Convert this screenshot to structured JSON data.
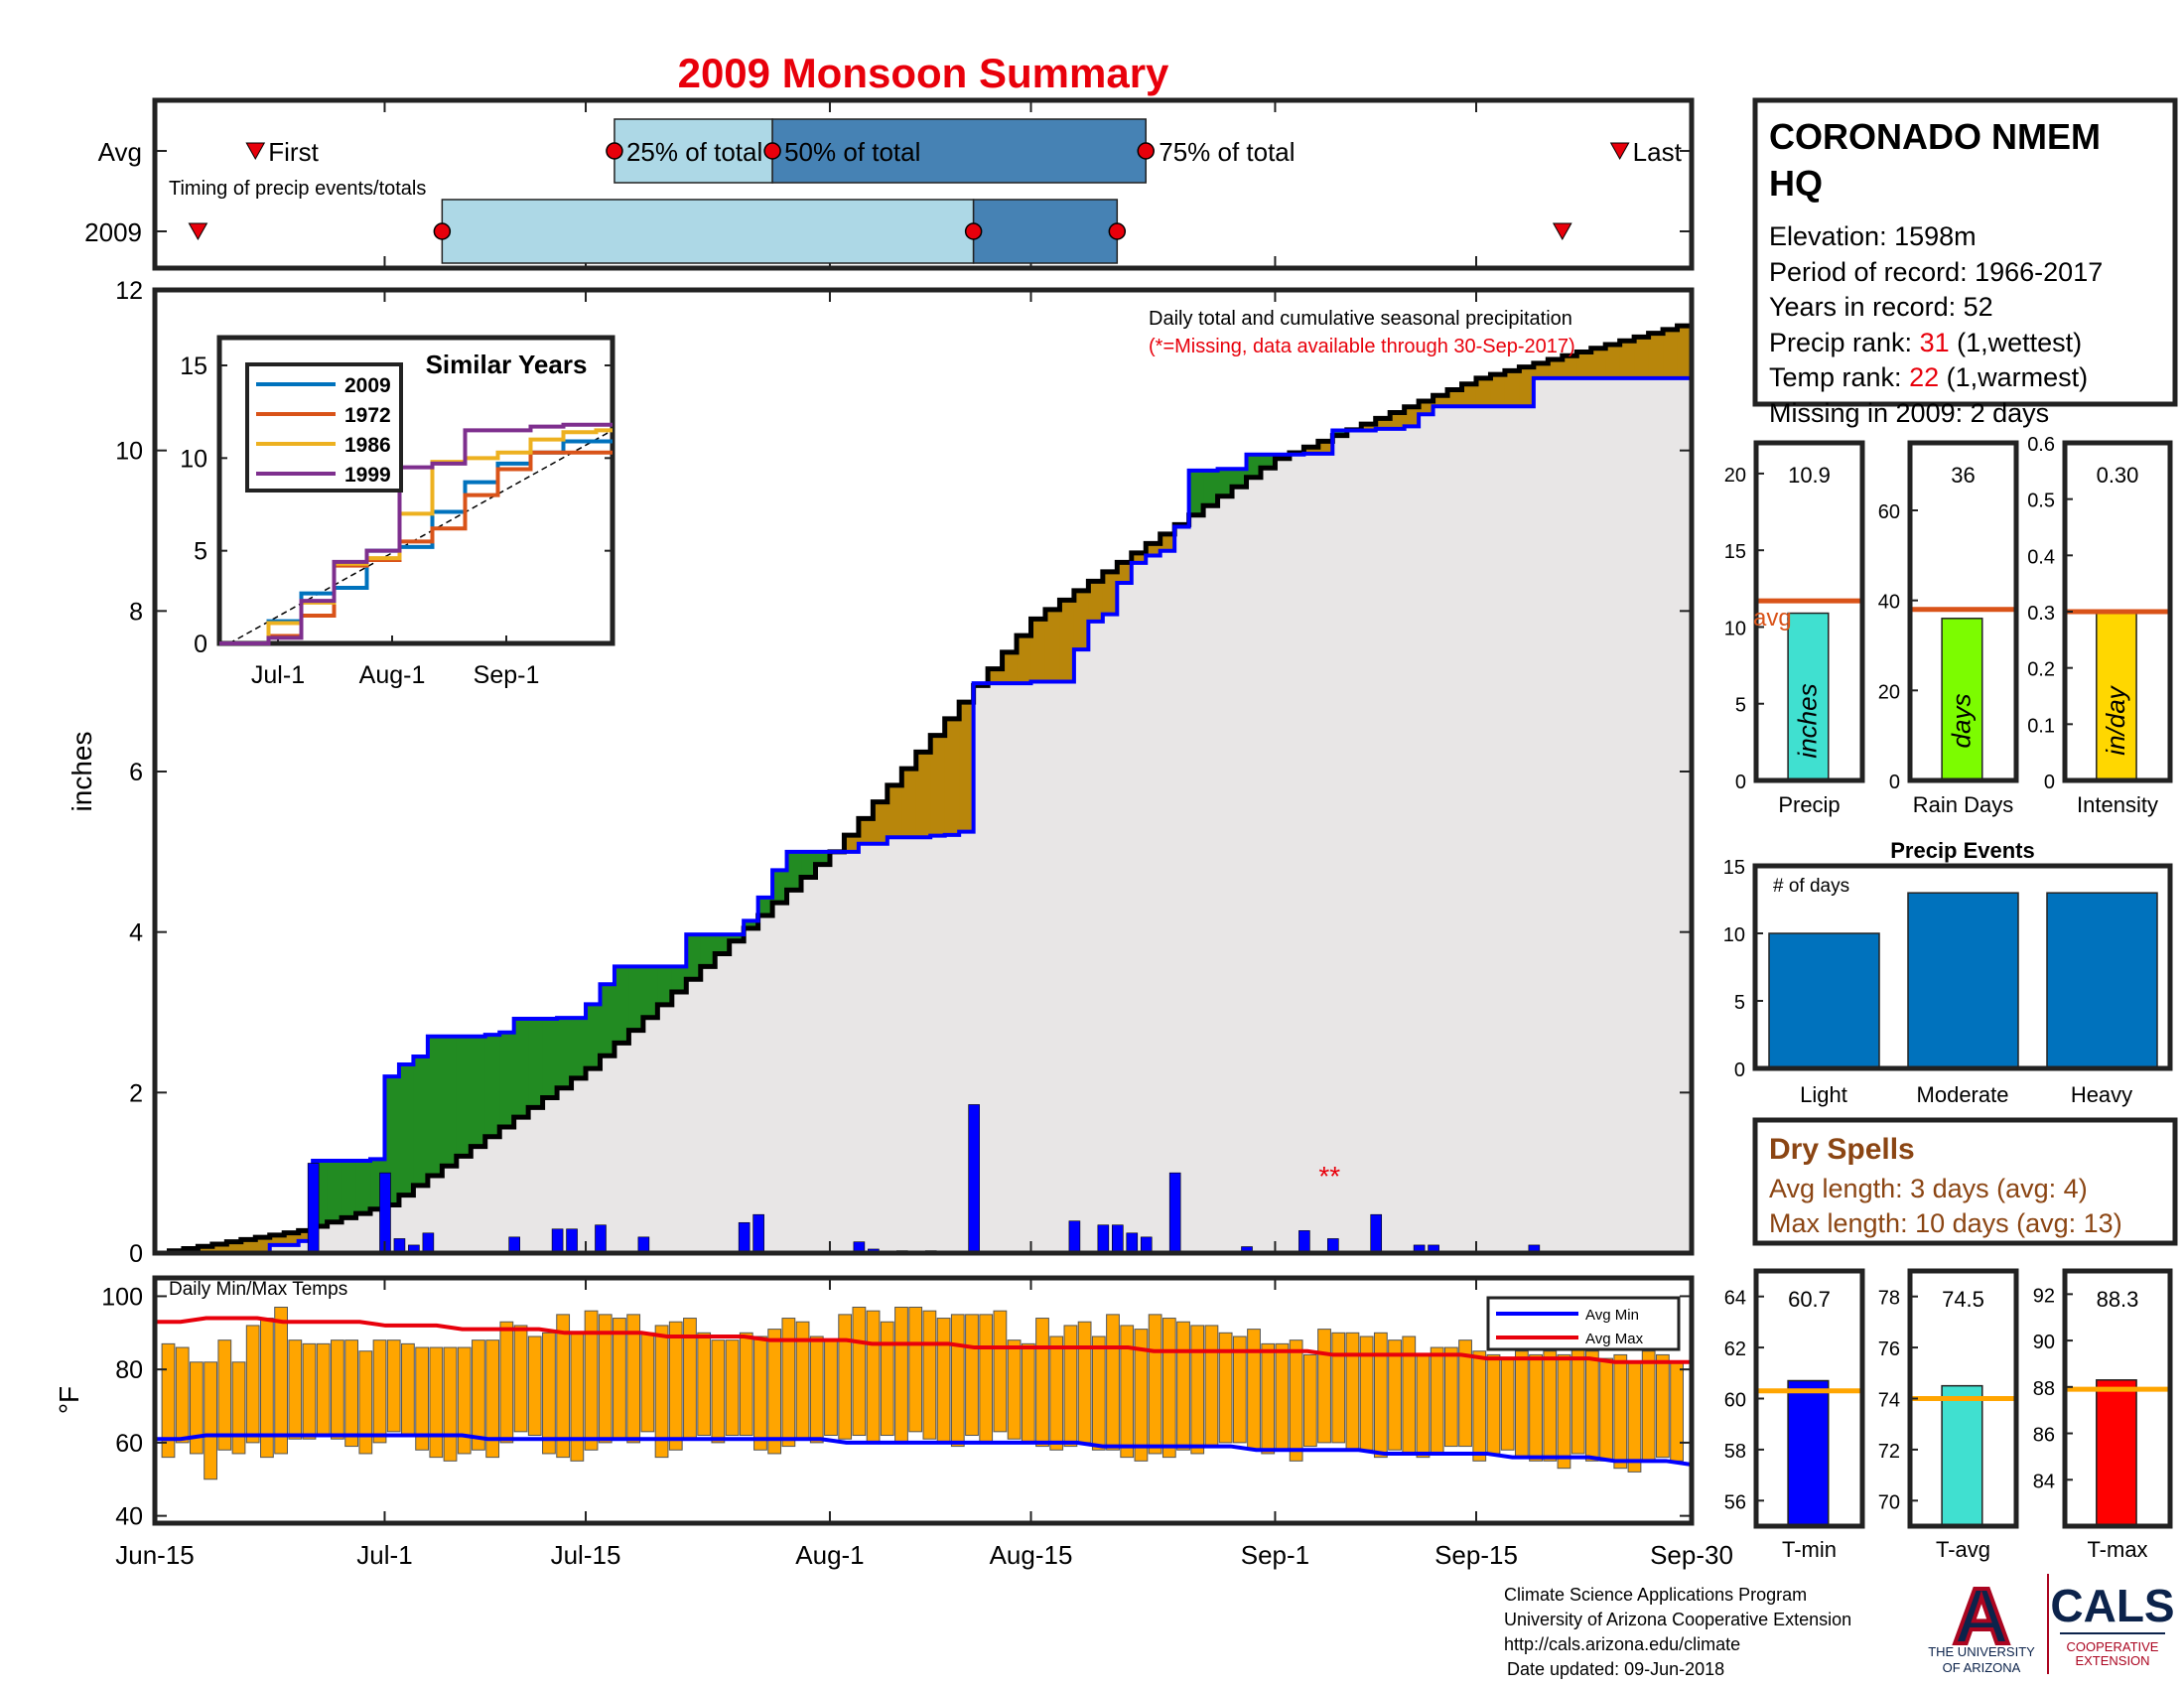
{
  "title": "2009 Monsoon Summary",
  "colors": {
    "title": "#e8000b",
    "red": "#e8000b",
    "brown": "#8b4513",
    "blue": "#0000ff",
    "green": "#228b22",
    "gold": "#b8860b",
    "lightgray": "#e8e6e6",
    "orange": "#ffa500",
    "avgline": "#d95319",
    "steel": "#4682b4",
    "lightblue": "#add8e6",
    "eventbar": "#0072bd"
  },
  "timing": {
    "row_labels": [
      "Avg",
      "2009"
    ],
    "note": "Timing of precip events/totals",
    "avg_labels": {
      "first": "First",
      "p25": "25% of total",
      "p50": "50% of total",
      "p75": "75% of total",
      "last": "Last"
    },
    "avg": {
      "first": "Jun-22",
      "p25": "Jul-17",
      "p50": "Jul-28",
      "p75": "Aug-23",
      "last": "Sep-25"
    },
    "y2009": {
      "first": "Jun-18",
      "p25": "Jul-05",
      "p50": "Aug-11",
      "p75": "Aug-21",
      "last": "Sep-21"
    }
  },
  "station": {
    "name_line1": "CORONADO NMEM",
    "name_line2": "HQ",
    "elevation": "Elevation: 1598m",
    "period": "Period of record: 1966-2017",
    "years": "Years in record: 52",
    "precip_rank_label": "Precip rank: ",
    "precip_rank": "31",
    "precip_rank_note": " (1,wettest)",
    "temp_rank_label": "Temp rank: ",
    "temp_rank": "22",
    "temp_rank_note": " (1,warmest)",
    "missing": "Missing in 2009: 2 days"
  },
  "main_chart": {
    "annotation1": "Daily total and cumulative seasonal precipitation",
    "annotation2": "(*=Missing, data available through 30-Sep-2017)",
    "ylabel": "inches",
    "missing_marker": "**",
    "x_ticks": [
      "Jun-15",
      "Jul-1",
      "Jul-15",
      "Aug-1",
      "Aug-15",
      "Sep-1",
      "Sep-15",
      "Sep-30"
    ],
    "y_ticks": [
      "0",
      "2",
      "4",
      "6",
      "8",
      "10",
      "12"
    ]
  },
  "inset": {
    "title": "Similar Years",
    "x_ticks": [
      "Jul-1",
      "Aug-1",
      "Sep-1"
    ],
    "y_ticks": [
      "0",
      "5",
      "10",
      "15"
    ],
    "legend": [
      "2009",
      "1972",
      "1986",
      "1999"
    ]
  },
  "temp_chart": {
    "title": "Daily Min/Max Temps",
    "ylabel": "°F",
    "y_ticks": [
      "40",
      "60",
      "80",
      "100"
    ],
    "legend_min": "Avg Min",
    "legend_max": "Avg Max"
  },
  "summary": {
    "precip": {
      "value": "10.9",
      "label": "Precip",
      "inner": "inches",
      "y_ticks": [
        "0",
        "5",
        "10",
        "15",
        "20"
      ],
      "avg_label": "avg"
    },
    "rain_days": {
      "value": "36",
      "label": "Rain Days",
      "inner": "days",
      "y_ticks": [
        "0",
        "20",
        "40",
        "60"
      ]
    },
    "intensity": {
      "value": "0.30",
      "label": "Intensity",
      "inner": "in/day",
      "y_ticks": [
        "0",
        "0.1",
        "0.2",
        "0.3",
        "0.4",
        "0.5",
        "0.6"
      ]
    }
  },
  "events": {
    "title": "Precip Events",
    "ylabel": "# of days",
    "y_ticks": [
      "0",
      "5",
      "10",
      "15"
    ]
  },
  "dry_spells": {
    "title": "Dry Spells",
    "avg_length": "Avg length: 3 days (avg: 4)",
    "max_length": "Max length: 10 days (avg: 13)"
  },
  "temps_summary": {
    "tmin": {
      "value": "60.7",
      "label": "T-min",
      "y_ticks": [
        "56",
        "58",
        "60",
        "62",
        "64"
      ]
    },
    "tavg": {
      "value": "74.5",
      "label": "T-avg",
      "y_ticks": [
        "70",
        "72",
        "74",
        "76",
        "78"
      ]
    },
    "tmax": {
      "value": "88.3",
      "label": "T-max",
      "y_ticks": [
        "84",
        "86",
        "88",
        "90",
        "92"
      ]
    }
  },
  "footer": {
    "line1": "Climate Science Applications Program",
    "line2": "University of Arizona Cooperative Extension",
    "line3": "http://cals.arizona.edu/climate",
    "line4": "Date updated: 09-Jun-2018"
  },
  "logo": {
    "letter": "A",
    "ua1": "THE UNIVERSITY",
    "ua2": "OF ARIZONA",
    "cals": "CALS",
    "coop1": "COOPERATIVE",
    "coop2": "EXTENSION"
  },
  "chart_data": [
    {
      "type": "area",
      "title": "Daily total and cumulative seasonal precipitation",
      "ylabel": "inches",
      "x_start": "Jun-15",
      "x_end": "Sep-30",
      "ylim": [
        0,
        12
      ],
      "series": [
        {
          "name": "2009",
          "x": [
            "Jun-15",
            "Jun-23",
            "Jun-25",
            "Jun-26",
            "Jun-30",
            "Jul-1",
            "Jul-2",
            "Jul-3",
            "Jul-4",
            "Jul-8",
            "Jul-9",
            "Jul-10",
            "Jul-13",
            "Jul-15",
            "Jul-16",
            "Jul-17",
            "Jul-20",
            "Jul-22",
            "Jul-26",
            "Jul-27",
            "Jul-28",
            "Jul-29",
            "Aug-1",
            "Aug-3",
            "Aug-5",
            "Aug-8",
            "Aug-9",
            "Aug-10",
            "Aug-11",
            "Aug-15",
            "Aug-18",
            "Aug-19",
            "Aug-20",
            "Aug-21",
            "Aug-22",
            "Aug-23",
            "Aug-24",
            "Aug-25",
            "Aug-26",
            "Aug-28",
            "Aug-30",
            "Sep-3",
            "Sep-5",
            "Sep-8",
            "Sep-10",
            "Sep-11",
            "Sep-12",
            "Sep-19",
            "Sep-30"
          ],
          "values": [
            0.0,
            0.1,
            0.15,
            1.15,
            1.17,
            2.2,
            2.35,
            2.45,
            2.7,
            2.72,
            2.75,
            2.92,
            2.93,
            3.1,
            3.35,
            3.57,
            3.57,
            3.97,
            4.14,
            4.43,
            4.77,
            5.0,
            5.0,
            5.1,
            5.18,
            5.2,
            5.21,
            5.25,
            7.1,
            7.12,
            7.52,
            7.87,
            7.96,
            8.35,
            8.6,
            8.69,
            8.75,
            9.05,
            9.75,
            9.77,
            9.95,
            9.96,
            10.25,
            10.27,
            10.3,
            10.45,
            10.55,
            10.9,
            10.9
          ]
        },
        {
          "name": "Avg",
          "x": [
            "Jun-15",
            "Jun-25",
            "Jul-1",
            "Jul-15",
            "Aug-1",
            "Aug-15",
            "Sep-1",
            "Sep-15",
            "Sep-30"
          ],
          "values": [
            0.0,
            0.28,
            0.6,
            2.3,
            5.0,
            7.9,
            9.9,
            10.9,
            11.6
          ]
        }
      ],
      "daily_bars": {
        "x": [
          "Jun-26",
          "Jul-1",
          "Jul-2",
          "Jul-3",
          "Jul-4",
          "Jul-10",
          "Jul-13",
          "Jul-14",
          "Jul-16",
          "Jul-19",
          "Jul-26",
          "Jul-27",
          "Aug-3",
          "Aug-4",
          "Aug-6",
          "Aug-8",
          "Aug-11",
          "Aug-18",
          "Aug-20",
          "Aug-21",
          "Aug-22",
          "Aug-23",
          "Aug-25",
          "Aug-30",
          "Sep-3",
          "Sep-5",
          "Sep-8",
          "Sep-11",
          "Sep-12",
          "Sep-19"
        ],
        "values": [
          1.12,
          1.0,
          0.18,
          0.1,
          0.25,
          0.2,
          0.3,
          0.3,
          0.35,
          0.2,
          0.38,
          0.48,
          0.14,
          0.05,
          0.03,
          0.03,
          1.85,
          0.4,
          0.35,
          0.35,
          0.25,
          0.2,
          1.0,
          0.08,
          0.28,
          0.18,
          0.48,
          0.1,
          0.1,
          0.1
        ]
      },
      "missing": [
        "Sep-5"
      ]
    },
    {
      "type": "line",
      "title": "Similar Years",
      "x_ticks": [
        "Jul-1",
        "Aug-1",
        "Sep-1"
      ],
      "ylim": [
        0,
        15
      ],
      "series": [
        {
          "name": "2009",
          "values": [
            0,
            0,
            1.2,
            2.7,
            3.0,
            5.0,
            5.2,
            7.1,
            8.7,
            9.7,
            10.3,
            10.9,
            10.9
          ]
        },
        {
          "name": "1972",
          "values": [
            0,
            0,
            0.4,
            1.5,
            4.2,
            4.5,
            5.5,
            6.2,
            8.0,
            9.4,
            10.3,
            10.3,
            10.3
          ]
        },
        {
          "name": "1986",
          "values": [
            0,
            0,
            1.1,
            2.2,
            4.3,
            4.6,
            7.0,
            9.8,
            10.0,
            10.3,
            11.0,
            11.4,
            11.5
          ]
        },
        {
          "name": "1999",
          "values": [
            0,
            0,
            0.3,
            2.3,
            4.4,
            5.0,
            9.5,
            9.7,
            11.5,
            11.5,
            11.7,
            11.8,
            11.8
          ]
        }
      ]
    },
    {
      "type": "bar",
      "title": "Daily Min/Max Temps",
      "ylabel": "°F",
      "ylim": [
        40,
        100
      ],
      "x_start": "Jun-15",
      "tmin": [
        56,
        60,
        57,
        50,
        58,
        57,
        60,
        56,
        57,
        61,
        61,
        62,
        61,
        59,
        57,
        60,
        63,
        62,
        58,
        56,
        55,
        57,
        58,
        56,
        60,
        63,
        62,
        57,
        56,
        55,
        58,
        60,
        61,
        60,
        63,
        56,
        58,
        61,
        62,
        60,
        62,
        62,
        58,
        57,
        59,
        61,
        60,
        62,
        61,
        62,
        60,
        62,
        60,
        63,
        61,
        60,
        59,
        62,
        60,
        63,
        61,
        60,
        59,
        58,
        59,
        60,
        58,
        58,
        56,
        55,
        57,
        56,
        58,
        57,
        59,
        60,
        60,
        58,
        57,
        58,
        55,
        59,
        60,
        60,
        58,
        58,
        56,
        58,
        57,
        56,
        57,
        59,
        59,
        55,
        57,
        58,
        56,
        55,
        55,
        53,
        57,
        55,
        55,
        53,
        52,
        55,
        56,
        55
      ],
      "tmax": [
        87,
        86,
        82,
        82,
        88,
        82,
        92,
        94,
        97,
        88,
        87,
        87,
        88,
        88,
        85,
        88,
        88,
        87,
        86,
        86,
        86,
        86,
        88,
        88,
        93,
        92,
        89,
        90,
        95,
        90,
        96,
        95,
        94,
        95,
        90,
        92,
        93,
        94,
        90,
        88,
        88,
        90,
        89,
        91,
        94,
        93,
        89,
        88,
        95,
        97,
        96,
        93,
        97,
        97,
        96,
        94,
        95,
        95,
        95,
        96,
        88,
        87,
        94,
        89,
        92,
        93,
        89,
        95,
        92,
        91,
        95,
        94,
        93,
        92,
        92,
        90,
        89,
        91,
        87,
        87,
        88,
        84,
        91,
        90,
        90,
        89,
        90,
        88,
        89,
        84,
        86,
        86,
        88,
        85,
        84,
        83,
        85,
        84,
        85,
        84,
        86,
        85,
        83,
        84,
        82,
        85,
        84,
        82
      ],
      "avg_min": [
        61,
        61,
        62,
        62,
        62,
        62,
        62,
        62,
        62,
        62,
        62,
        62,
        62,
        61,
        61,
        61,
        61,
        61,
        61,
        61,
        61,
        61,
        61,
        61,
        61,
        61,
        61,
        60,
        60,
        60,
        60,
        60,
        60,
        60,
        60,
        60,
        60,
        59,
        59,
        59,
        59,
        59,
        59,
        58,
        58,
        58,
        58,
        58,
        57,
        57,
        57,
        57,
        57,
        56,
        56,
        56,
        56,
        55,
        55,
        55,
        54
      ],
      "avg_max": [
        93,
        93,
        94,
        94,
        94,
        93,
        93,
        93,
        93,
        92,
        92,
        92,
        91,
        91,
        91,
        91,
        90,
        90,
        90,
        90,
        89,
        89,
        89,
        89,
        88,
        88,
        88,
        88,
        87,
        87,
        87,
        87,
        86,
        86,
        86,
        86,
        86,
        86,
        86,
        85,
        85,
        85,
        85,
        85,
        85,
        85,
        84,
        84,
        84,
        84,
        84,
        84,
        83,
        83,
        83,
        83,
        83,
        82,
        82,
        82,
        82
      ]
    },
    {
      "type": "bar",
      "title": "Precip Events",
      "categories": [
        "Light",
        "Moderate",
        "Heavy"
      ],
      "values": [
        10,
        13,
        13
      ],
      "ylim": [
        0,
        15
      ]
    },
    {
      "type": "bar",
      "title": "Precip / Rain Days / Intensity",
      "categories": [
        "Precip",
        "Rain Days",
        "Intensity"
      ],
      "values": [
        10.9,
        36,
        0.3
      ],
      "averages": [
        11.7,
        38,
        0.3
      ],
      "ylims": [
        [
          0,
          22
        ],
        [
          0,
          75
        ],
        [
          0,
          0.6
        ]
      ]
    },
    {
      "type": "bar",
      "title": "Temperatures",
      "categories": [
        "T-min",
        "T-avg",
        "T-max"
      ],
      "values": [
        60.7,
        74.5,
        88.3
      ],
      "averages": [
        60.3,
        74.0,
        87.9
      ],
      "ylims": [
        [
          55,
          65
        ],
        [
          69,
          79
        ],
        [
          82,
          93
        ]
      ]
    }
  ]
}
